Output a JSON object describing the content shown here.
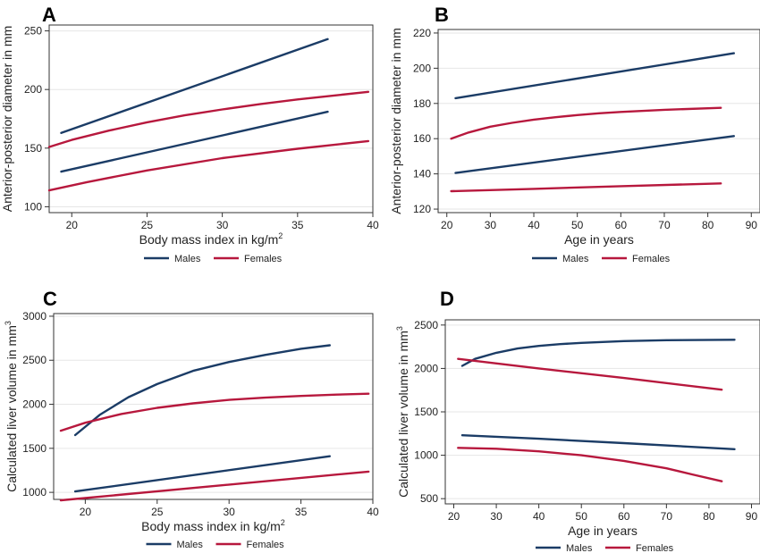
{
  "colors": {
    "males": "#1b3c66",
    "females": "#b7183d"
  },
  "chart_data": [
    {
      "panel": "A",
      "type": "line",
      "xlabel": "Body mass index in kg/m",
      "xlabel_sup": "2",
      "ylabel": "Anterior-posterior diameter in mm",
      "xlim": [
        18.5,
        40
      ],
      "ylim": [
        95,
        255
      ],
      "xticks": [
        20,
        25,
        30,
        35,
        40
      ],
      "yticks": [
        100,
        150,
        200,
        250
      ],
      "legend": [
        "Males",
        "Females"
      ],
      "series": [
        {
          "name": "Males",
          "color_key": "males",
          "x": [
            19.3,
            37
          ],
          "y": [
            163,
            243
          ]
        },
        {
          "name": "Males",
          "color_key": "males",
          "x": [
            19.3,
            37
          ],
          "y": [
            130,
            181
          ]
        },
        {
          "name": "Females",
          "color_key": "females",
          "x": [
            18.5,
            20,
            22.5,
            25,
            27.5,
            30,
            32.5,
            35,
            37.5,
            39.7
          ],
          "y": [
            151,
            157,
            165,
            172,
            178,
            183,
            187.5,
            191.5,
            195,
            198
          ]
        },
        {
          "name": "Females",
          "color_key": "females",
          "x": [
            18.5,
            21,
            25,
            30,
            35,
            39.7
          ],
          "y": [
            114,
            121,
            131,
            141.5,
            149.5,
            156
          ]
        }
      ]
    },
    {
      "panel": "B",
      "type": "line",
      "xlabel": "Age in years",
      "ylabel": "Anterior-posterior diameter in mm",
      "xlim": [
        18,
        92
      ],
      "ylim": [
        118,
        222
      ],
      "xticks": [
        20,
        30,
        40,
        50,
        60,
        70,
        80,
        90
      ],
      "yticks": [
        120,
        140,
        160,
        180,
        200,
        220
      ],
      "legend": [
        "Males",
        "Females"
      ],
      "series": [
        {
          "name": "Males",
          "color_key": "males",
          "x": [
            22,
            86
          ],
          "y": [
            183,
            208.5
          ]
        },
        {
          "name": "Males",
          "color_key": "males",
          "x": [
            22,
            86
          ],
          "y": [
            140.5,
            161.5
          ]
        },
        {
          "name": "Females",
          "color_key": "females",
          "x": [
            21,
            25,
            30,
            35,
            40,
            45,
            50,
            55,
            60,
            70,
            83
          ],
          "y": [
            160,
            163.5,
            166.8,
            169,
            170.8,
            172.2,
            173.4,
            174.4,
            175.2,
            176.4,
            177.5
          ]
        },
        {
          "name": "Females",
          "color_key": "females",
          "x": [
            21,
            40,
            60,
            83
          ],
          "y": [
            130.2,
            131.5,
            133,
            134.6
          ]
        }
      ]
    },
    {
      "panel": "C",
      "type": "line",
      "xlabel": "Body mass index in kg/m",
      "xlabel_sup": "2",
      "ylabel": "Calculated liver volume in mm",
      "ylabel_sup": "3",
      "xlim": [
        17.8,
        40
      ],
      "ylim": [
        920,
        3030
      ],
      "xticks": [
        20,
        25,
        30,
        35,
        40
      ],
      "yticks": [
        1000,
        1500,
        2000,
        2500,
        3000
      ],
      "legend": [
        "Males",
        "Females"
      ],
      "series": [
        {
          "name": "Males",
          "color_key": "males",
          "x": [
            19.3,
            21,
            23,
            25,
            27.5,
            30,
            32.5,
            35,
            37
          ],
          "y": [
            1650,
            1880,
            2080,
            2230,
            2380,
            2480,
            2560,
            2630,
            2670
          ]
        },
        {
          "name": "Males",
          "color_key": "males",
          "x": [
            19.3,
            37
          ],
          "y": [
            1010,
            1410
          ]
        },
        {
          "name": "Females",
          "color_key": "females",
          "x": [
            18.3,
            20,
            22.5,
            25,
            27.5,
            30,
            32.5,
            35,
            37.5,
            39.7
          ],
          "y": [
            1700,
            1790,
            1890,
            1960,
            2010,
            2050,
            2075,
            2095,
            2110,
            2120
          ]
        },
        {
          "name": "Females",
          "color_key": "females",
          "x": [
            18.3,
            39.7
          ],
          "y": [
            910,
            1235
          ]
        }
      ]
    },
    {
      "panel": "D",
      "type": "line",
      "xlabel": "Age in years",
      "ylabel": "Calculated liver volume in mm",
      "ylabel_sup": "3",
      "xlim": [
        18,
        92
      ],
      "ylim": [
        440,
        2560
      ],
      "xticks": [
        20,
        30,
        40,
        50,
        60,
        70,
        80,
        90
      ],
      "yticks": [
        500,
        1000,
        1500,
        2000,
        2500
      ],
      "legend": [
        "Males",
        "Females"
      ],
      "series": [
        {
          "name": "Males",
          "color_key": "males",
          "x": [
            22,
            25,
            30,
            35,
            40,
            45,
            50,
            55,
            60,
            70,
            86
          ],
          "y": [
            2030,
            2110,
            2180,
            2230,
            2260,
            2280,
            2295,
            2305,
            2315,
            2325,
            2330
          ]
        },
        {
          "name": "Males",
          "color_key": "males",
          "x": [
            22,
            40,
            60,
            86
          ],
          "y": [
            1230,
            1190,
            1140,
            1070
          ]
        },
        {
          "name": "Females",
          "color_key": "females",
          "x": [
            21,
            40,
            60,
            83
          ],
          "y": [
            2110,
            2000,
            1890,
            1755
          ]
        },
        {
          "name": "Females",
          "color_key": "females",
          "x": [
            21,
            30,
            40,
            50,
            60,
            70,
            76,
            83
          ],
          "y": [
            1085,
            1075,
            1045,
            1000,
            935,
            850,
            780,
            700
          ]
        }
      ]
    }
  ]
}
